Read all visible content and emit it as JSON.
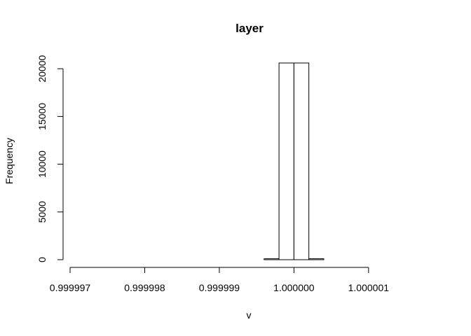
{
  "chart_data": {
    "type": "bar",
    "title": "layer",
    "xlabel": "v",
    "ylabel": "Frequency",
    "bin_width": 2e-07,
    "bins": [
      {
        "start": 0.999997,
        "count": 0
      },
      {
        "start": 0.9999972,
        "count": 0
      },
      {
        "start": 0.9999974,
        "count": 0
      },
      {
        "start": 0.9999976,
        "count": 0
      },
      {
        "start": 0.9999978,
        "count": 0
      },
      {
        "start": 0.999998,
        "count": 0
      },
      {
        "start": 0.9999982,
        "count": 0
      },
      {
        "start": 0.9999984,
        "count": 0
      },
      {
        "start": 0.9999986,
        "count": 0
      },
      {
        "start": 0.9999988,
        "count": 0
      },
      {
        "start": 0.999999,
        "count": 0
      },
      {
        "start": 0.9999992,
        "count": 0
      },
      {
        "start": 0.9999994,
        "count": 0
      },
      {
        "start": 0.9999996,
        "count": 100
      },
      {
        "start": 0.9999998,
        "count": 20600
      },
      {
        "start": 1.0,
        "count": 20600
      },
      {
        "start": 1.0000002,
        "count": 100
      },
      {
        "start": 1.0000004,
        "count": 0
      },
      {
        "start": 1.0000006,
        "count": 0
      },
      {
        "start": 1.0000008,
        "count": 0
      },
      {
        "start": 1.000001,
        "count": 0
      },
      {
        "start": 1.0000012,
        "count": 0
      },
      {
        "start": 1.0000014,
        "count": 0
      },
      {
        "start": 1.0000016,
        "count": 0
      }
    ],
    "x_ticks": [
      {
        "value": 0.999997,
        "label": "0.999997"
      },
      {
        "value": 0.999998,
        "label": "0.999998"
      },
      {
        "value": 0.999999,
        "label": "0.999999"
      },
      {
        "value": 1.0,
        "label": "1.000000"
      },
      {
        "value": 1.000001,
        "label": "1.000001"
      }
    ],
    "y_ticks": [
      {
        "value": 0,
        "label": "0"
      },
      {
        "value": 5000,
        "label": "5000"
      },
      {
        "value": 10000,
        "label": "10000"
      },
      {
        "value": 15000,
        "label": "15000"
      },
      {
        "value": 20000,
        "label": "20000"
      }
    ],
    "xlim": [
      0.999997,
      1.0000018
    ],
    "ylim": [
      0,
      20600
    ],
    "grid": false,
    "legend": "none"
  }
}
